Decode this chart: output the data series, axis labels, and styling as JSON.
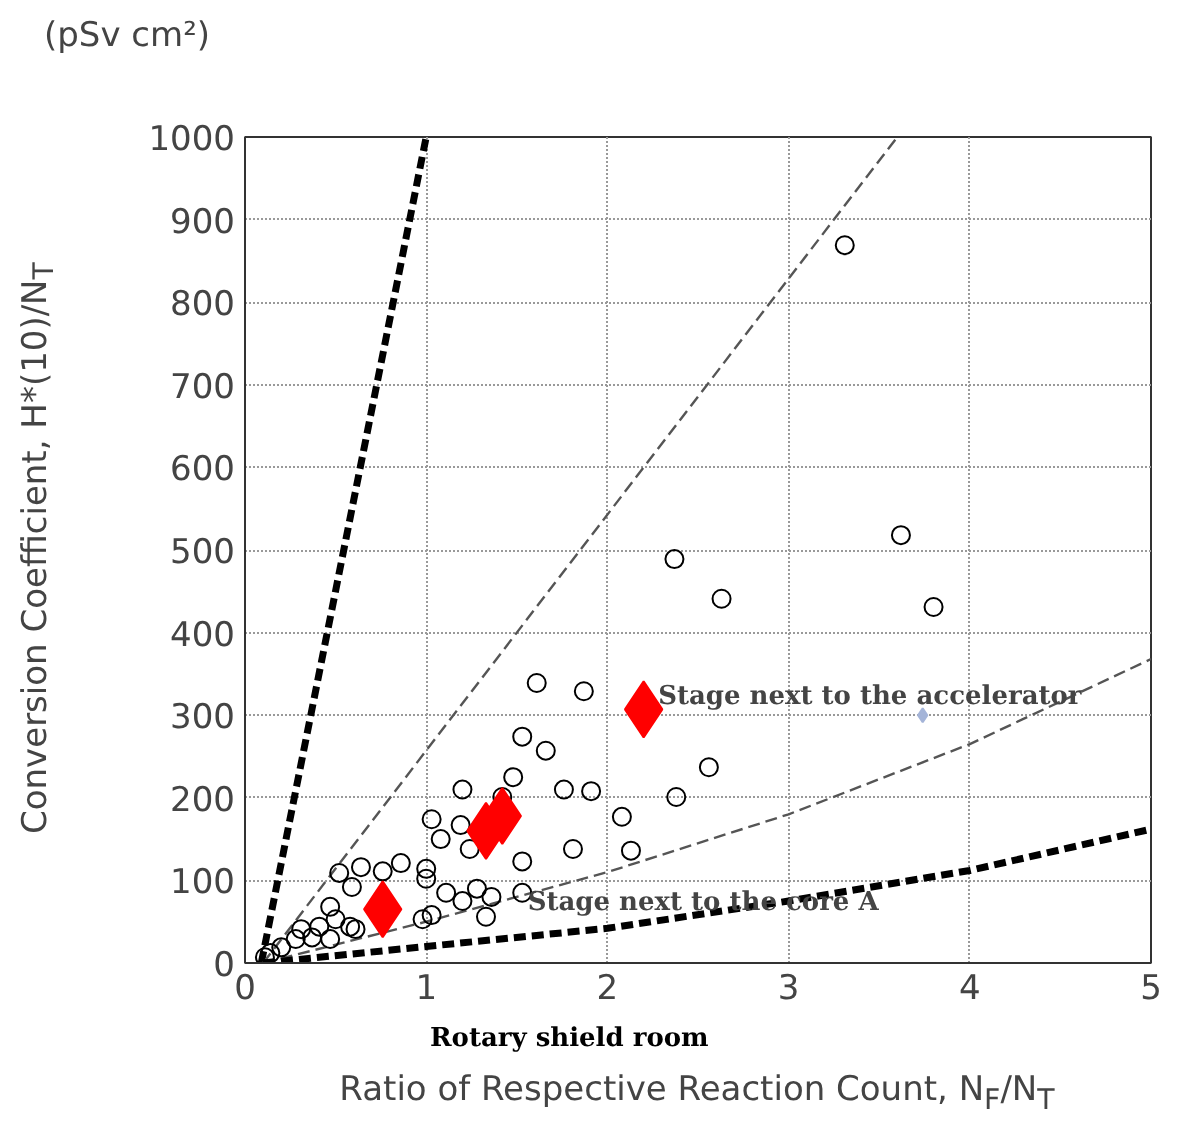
{
  "chart_data": {
    "type": "scatter",
    "xlabel": "Ratio of Respective Reaction Count, N$_{F}$/N$_{T}$",
    "ylabel": "Conversion Coefficient, H*(10)/N$_{T}$",
    "xlim": [
      0,
      5
    ],
    "ylim": [
      0,
      1000
    ],
    "xticks": [
      0,
      1,
      2,
      3,
      4,
      5
    ],
    "yticks": [
      0,
      100,
      200,
      300,
      400,
      500,
      600,
      700,
      800,
      900,
      1000
    ],
    "grid": true,
    "series": [
      {
        "type": "line",
        "color": "#000000",
        "line_style": "dashed",
        "x": [
          0.09,
          1.0
        ],
        "values": [
          0,
          1000
        ]
      },
      {
        "type": "line",
        "color": "#555555",
        "line_style": "dashed",
        "x": [
          0.1,
          3.6
        ],
        "values": [
          0,
          1000
        ]
      },
      {
        "type": "line",
        "color": "#555555",
        "line_style": "dashed",
        "x": [
          0.1,
          1,
          2,
          3,
          4,
          5
        ],
        "values": [
          0,
          50,
          110,
          180,
          265,
          368
        ]
      },
      {
        "type": "line",
        "color": "#000000",
        "line_style": "dashed",
        "x": [
          0.1,
          1,
          2,
          3,
          4,
          5
        ],
        "values": [
          0,
          20,
          42,
          75,
          112,
          162
        ]
      },
      {
        "type": "scatter",
        "color": "#000000",
        "marker": "circle",
        "x": [
          1.61,
          1.87,
          1.53,
          1.66,
          1.48,
          1.2,
          1.76,
          1.91,
          1.03,
          1.19,
          1.42,
          1.08,
          1.24,
          1.81,
          1.53,
          2.08,
          0.52,
          0.64,
          0.76,
          0.86,
          1.0,
          1.0,
          0.59,
          0.47,
          1.11,
          1.2,
          1.28,
          1.36,
          1.53,
          1.33,
          0.98,
          1.03,
          0.5,
          0.61,
          0.41,
          0.31,
          0.28,
          0.2,
          0.14,
          0.11,
          0.47,
          0.37,
          0.58,
          3.31,
          3.62,
          3.8,
          2.37,
          2.63,
          2.56,
          2.38,
          2.13
        ],
        "values": [
          339,
          329,
          274,
          257,
          225,
          210,
          210,
          208,
          174,
          167,
          201,
          150,
          138,
          138,
          123,
          177,
          109,
          116,
          111,
          121,
          114,
          102,
          92,
          68,
          85,
          75,
          90,
          80,
          85,
          56,
          53,
          58,
          53,
          41,
          44,
          41,
          29,
          19,
          12,
          7,
          29,
          31,
          44,
          869,
          518,
          431,
          489,
          441,
          237,
          201,
          136
        ]
      },
      {
        "type": "scatter",
        "color": "#ff0000",
        "marker": "diamond",
        "x": [
          0.76,
          1.33,
          1.42,
          2.2
        ],
        "values": [
          65,
          160,
          178,
          307
        ]
      },
      {
        "type": "scatter",
        "color": "#a4b4d8",
        "marker": "diamond",
        "x": [
          3.74
        ],
        "values": [
          300
        ]
      }
    ],
    "annotations": [
      {
        "text": "Stage next to the accelerator",
        "x": 2.28,
        "y": 322
      },
      {
        "text": "Stage next to the core A",
        "x": 1.56,
        "y": 73
      },
      "Rotary shield room",
      "(pSv cm²)"
    ]
  }
}
